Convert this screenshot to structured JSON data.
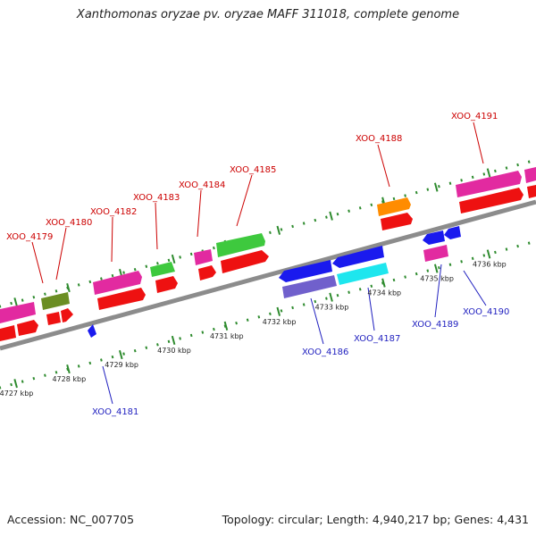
{
  "title": "Xanthomonas oryzae pv. oryzae MAFF 311018, complete genome",
  "footer": {
    "accession": "Accession: NC_007705",
    "summary": "Topology: circular; Length: 4,940,217 bp; Genes: 4,431"
  },
  "colors": {
    "backbone": "#8c8c8c",
    "tick_major": "#2e8b2e",
    "tick_minor": "#2e8b2e",
    "forward_label": "#cc0000",
    "reverse_label": "#1f1fbf"
  },
  "scale": {
    "start_kbp": 4726.7,
    "end_kbp": 4736.9,
    "tick_labels": [
      "4727 kbp",
      "4728 kbp",
      "4729 kbp",
      "4730 kbp",
      "4731 kbp",
      "4732 kbp",
      "4733 kbp",
      "4734 kbp",
      "4735 kbp",
      "4736 kbp"
    ]
  },
  "gene_labels": [
    {
      "text": "XOO_4179",
      "strand": "forward"
    },
    {
      "text": "XOO_4180",
      "strand": "forward"
    },
    {
      "text": "XOO_4182",
      "strand": "forward"
    },
    {
      "text": "XOO_4183",
      "strand": "forward"
    },
    {
      "text": "XOO_4184",
      "strand": "forward"
    },
    {
      "text": "XOO_4185",
      "strand": "forward"
    },
    {
      "text": "XOO_4188",
      "strand": "forward"
    },
    {
      "text": "XOO_4191",
      "strand": "forward"
    },
    {
      "text": "XOO_4181",
      "strand": "reverse"
    },
    {
      "text": "XOO_4186",
      "strand": "reverse"
    },
    {
      "text": "XOO_4187",
      "strand": "reverse"
    },
    {
      "text": "XOO_4189",
      "strand": "reverse"
    },
    {
      "text": "XOO_4190",
      "strand": "reverse"
    }
  ]
}
